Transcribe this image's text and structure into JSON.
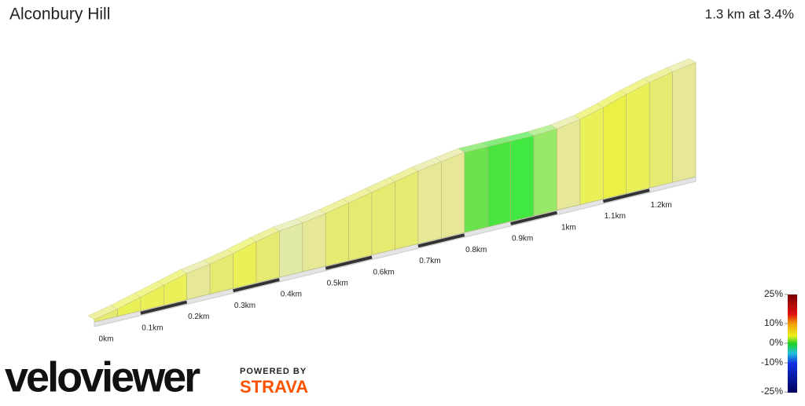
{
  "chart_data": {
    "type": "profile",
    "title": "Alconbury Hill",
    "subtitle": "1.3 km at 3.4%",
    "x": [
      0,
      0.05,
      0.1,
      0.15,
      0.2,
      0.25,
      0.3,
      0.35,
      0.4,
      0.45,
      0.5,
      0.55,
      0.6,
      0.65,
      0.7,
      0.75,
      0.8,
      0.85,
      0.9,
      0.95,
      1.0,
      1.05,
      1.1,
      1.15,
      1.2,
      1.25
    ],
    "values": [
      4,
      5,
      5,
      5,
      3,
      4,
      5,
      4,
      2,
      3,
      4,
      4,
      4,
      4,
      3,
      3,
      0,
      0,
      0,
      1,
      3,
      5,
      6,
      5,
      4,
      3
    ],
    "segment_colors": [
      "#e3e860",
      "#e8ee45",
      "#e8ee45",
      "#e8ee45",
      "#e3e68c",
      "#e3e860",
      "#e8ee45",
      "#e3e860",
      "#dde89a",
      "#e3e68c",
      "#e3e860",
      "#e3e860",
      "#e3e860",
      "#e3e860",
      "#e3e68c",
      "#e3e68c",
      "#5ae03c",
      "#36e02a",
      "#2ee62e",
      "#8de65a",
      "#e3e68c",
      "#e8ee45",
      "#e8ee30",
      "#e8ee45",
      "#e3e860",
      "#e3e68c"
    ],
    "xlim": [
      0,
      1.3
    ],
    "xticks": [
      {
        "value": 0,
        "label": "0km"
      },
      {
        "value": 0.1,
        "label": "0.1km"
      },
      {
        "value": 0.2,
        "label": "0.2km"
      },
      {
        "value": 0.3,
        "label": "0.3km"
      },
      {
        "value": 0.4,
        "label": "0.4km"
      },
      {
        "value": 0.5,
        "label": "0.5km"
      },
      {
        "value": 0.6,
        "label": "0.6km"
      },
      {
        "value": 0.7,
        "label": "0.7km"
      },
      {
        "value": 0.8,
        "label": "0.8km"
      },
      {
        "value": 0.9,
        "label": "0.9km"
      },
      {
        "value": 1,
        "label": "1km"
      },
      {
        "value": 1.1,
        "label": "1.1km"
      },
      {
        "value": 1.2,
        "label": "1.2km"
      }
    ],
    "colorbar_ticks": [
      {
        "value": 25,
        "label": "25%"
      },
      {
        "value": 10,
        "label": "10%"
      },
      {
        "value": 0,
        "label": "0%"
      },
      {
        "value": -10,
        "label": "-10%"
      },
      {
        "value": -25,
        "label": "-25%"
      }
    ]
  },
  "branding": {
    "logo": "veloviewer",
    "powered_by": "POWERED BY",
    "strava": "STRAVA"
  }
}
